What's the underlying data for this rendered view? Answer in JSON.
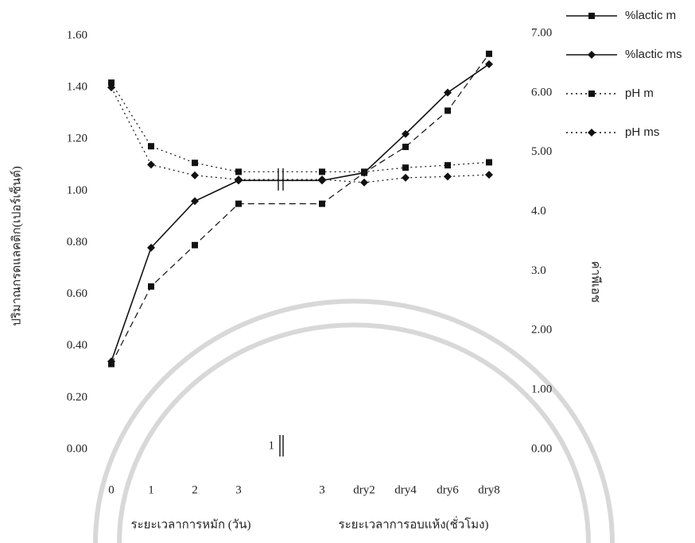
{
  "chart_data": {
    "type": "line",
    "categories": [
      "0",
      "1",
      "2",
      "3",
      "3",
      "dry2",
      "dry4",
      "dry6",
      "dry8"
    ],
    "break_label": "1",
    "x_titles": [
      "ระยะเวลาการหมัก (วัน)",
      "ระยะเวลาการอบแห้ง(ชั่วโมง)"
    ],
    "y_title": "ปริมาณกรดแลคติก(เปอร์เซ็นต์)",
    "y2_title": "ค่าพีเอช",
    "ylim": [
      0,
      1.6
    ],
    "yticks": [
      {
        "value": 0,
        "label": "0.00"
      },
      {
        "value": 0.2,
        "label": "0.20"
      },
      {
        "value": 0.4,
        "label": "0.40"
      },
      {
        "value": 0.6,
        "label": "0.60"
      },
      {
        "value": 0.8,
        "label": "0.80"
      },
      {
        "value": 1.0,
        "label": "1.00"
      },
      {
        "value": 1.2,
        "label": "1.20"
      },
      {
        "value": 1.4,
        "label": "1.40"
      },
      {
        "value": 1.6,
        "label": "1.60"
      }
    ],
    "y2lim": [
      0,
      7
    ],
    "y2ticks": [
      {
        "value": 0,
        "label": "0.00"
      },
      {
        "value": 1,
        "label": "1.00"
      },
      {
        "value": 2,
        "label": "2.00"
      },
      {
        "value": 3,
        "label": "3.0"
      },
      {
        "value": 4,
        "label": "4.0"
      },
      {
        "value": 5,
        "label": "5.00"
      },
      {
        "value": 6,
        "label": "6.00"
      },
      {
        "value": 7,
        "label": "7.00"
      }
    ],
    "series": [
      {
        "name": "%lactic m",
        "color": "#111111",
        "line_style": "dashed",
        "marker": "square",
        "values": [
          0.33,
          0.63,
          0.79,
          0.95,
          0.95,
          1.07,
          1.17,
          1.31,
          1.53
        ]
      },
      {
        "name": "%lactic ms",
        "color": "#111111",
        "line_style": "solid",
        "marker": "diamond",
        "values": [
          0.34,
          0.78,
          0.96,
          1.04,
          1.04,
          1.07,
          1.22,
          1.38,
          1.49
        ]
      },
      {
        "name": "pH m",
        "color": "#111111",
        "line_style": "dotted",
        "marker": "square",
        "axis": "y2",
        "values": [
          6.17,
          5.1,
          4.82,
          4.67,
          4.67,
          4.67,
          4.74,
          4.78,
          4.83
        ]
      },
      {
        "name": "pH ms",
        "color": "#111111",
        "line_style": "dotted",
        "marker": "diamond",
        "axis": "y2",
        "values": [
          6.09,
          4.79,
          4.61,
          4.54,
          4.54,
          4.49,
          4.57,
          4.59,
          4.62
        ]
      }
    ]
  }
}
